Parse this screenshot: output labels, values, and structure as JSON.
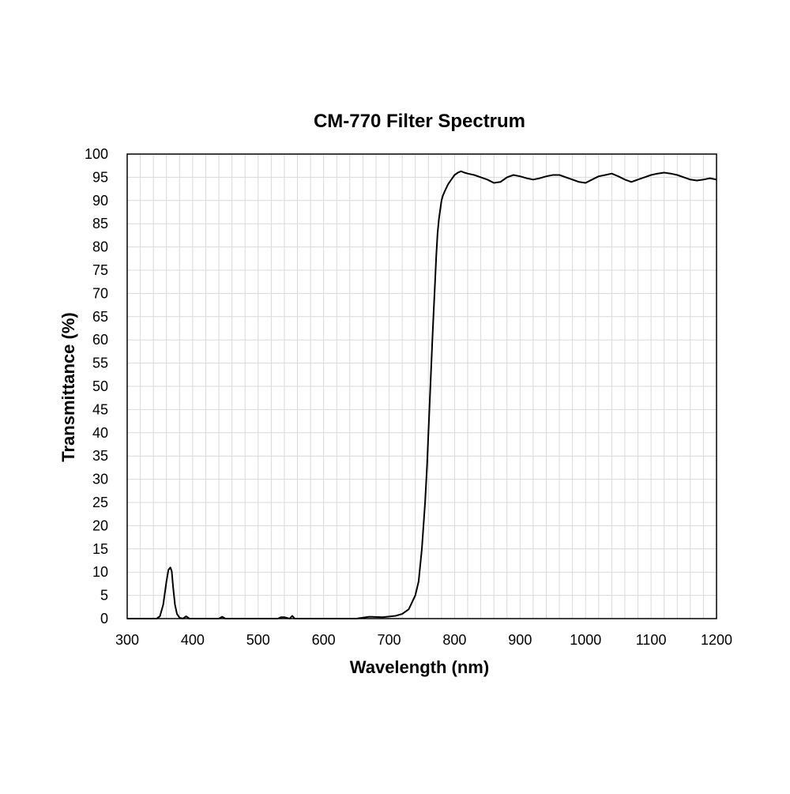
{
  "chart_data": {
    "type": "line",
    "title": "CM-770 Filter Spectrum",
    "xlabel": "Wavelength (nm)",
    "ylabel": "Transmittance (%)",
    "xlim": [
      300,
      1200
    ],
    "ylim": [
      0,
      100
    ],
    "x_ticks": [
      300,
      400,
      500,
      600,
      700,
      800,
      900,
      1000,
      1100,
      1200
    ],
    "y_ticks": [
      0,
      5,
      10,
      15,
      20,
      25,
      30,
      35,
      40,
      45,
      50,
      55,
      60,
      65,
      70,
      75,
      80,
      85,
      90,
      95,
      100
    ],
    "grid": true,
    "line_color": "#000000",
    "series": [
      {
        "x": [
          300,
          345,
          350,
          355,
          360,
          363,
          366,
          368,
          370,
          373,
          376,
          380,
          385,
          390,
          395,
          400,
          440,
          445,
          450,
          530,
          535,
          540,
          548,
          552,
          556,
          650,
          670,
          690,
          710,
          720,
          730,
          740,
          745,
          750,
          755,
          758,
          760,
          763,
          766,
          768,
          770,
          772,
          774,
          776,
          778,
          780,
          782,
          785,
          790,
          795,
          800,
          805,
          810,
          815,
          820,
          830,
          840,
          850,
          860,
          870,
          880,
          890,
          900,
          910,
          920,
          930,
          940,
          950,
          960,
          970,
          980,
          990,
          1000,
          1010,
          1020,
          1030,
          1040,
          1050,
          1060,
          1070,
          1080,
          1090,
          1100,
          1110,
          1120,
          1130,
          1140,
          1150,
          1160,
          1170,
          1180,
          1190,
          1200
        ],
        "y": [
          0,
          0,
          0.5,
          3,
          8,
          10.5,
          11,
          10.2,
          7,
          3,
          1,
          0.2,
          0,
          0.5,
          0,
          0,
          0,
          0.4,
          0,
          0,
          0.3,
          0.3,
          0,
          0.6,
          0,
          0,
          0.4,
          0.3,
          0.6,
          1.0,
          2.0,
          5.0,
          8.0,
          15,
          25,
          33,
          40,
          50,
          60,
          66,
          72,
          78,
          83,
          86,
          88,
          90,
          91,
          92,
          93.5,
          94.5,
          95.5,
          96,
          96.3,
          96,
          95.8,
          95.5,
          95,
          94.5,
          93.8,
          94,
          95,
          95.5,
          95.2,
          94.8,
          94.5,
          94.8,
          95.2,
          95.5,
          95.5,
          95,
          94.5,
          94,
          93.8,
          94.5,
          95.2,
          95.5,
          95.8,
          95.2,
          94.5,
          94,
          94.5,
          95,
          95.5,
          95.8,
          96,
          95.8,
          95.5,
          95,
          94.5,
          94.3,
          94.5,
          94.8,
          94.5
        ]
      }
    ]
  }
}
